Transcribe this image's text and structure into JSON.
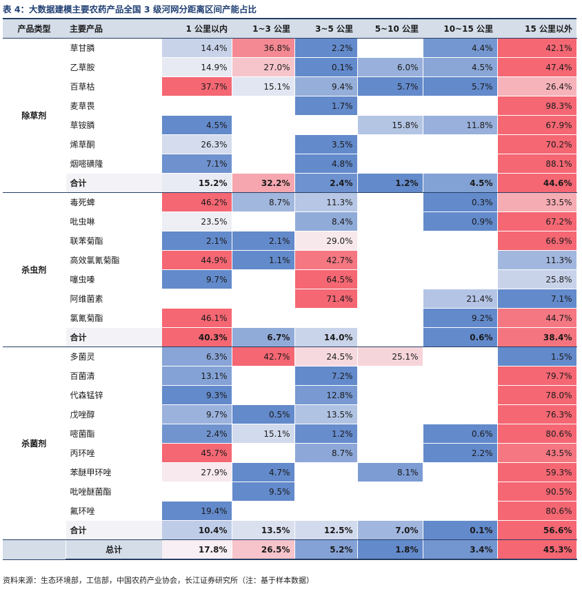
{
  "title": "表 4：大数据建模主要农药产品全国 3 级河网分距离区间产能占比",
  "columns": [
    "产品类型",
    "主要产品",
    "1 公里以内",
    "1~3 公里",
    "3~5 公里",
    "5~10 公里",
    "10~15 公里",
    "15 公里以外"
  ],
  "groups": [
    {
      "category": "除草剂",
      "rows": [
        {
          "name": "草甘膦",
          "values": [
            "14.4%",
            "36.8%",
            "2.2%",
            "",
            "4.4%",
            "42.1%"
          ]
        },
        {
          "name": "乙草胺",
          "values": [
            "14.9%",
            "27.0%",
            "0.1%",
            "6.0%",
            "4.5%",
            "47.4%"
          ]
        },
        {
          "name": "百草枯",
          "values": [
            "37.7%",
            "15.1%",
            "9.4%",
            "5.7%",
            "5.7%",
            "26.4%"
          ]
        },
        {
          "name": "麦草畏",
          "values": [
            "",
            "",
            "1.7%",
            "",
            "",
            "98.3%"
          ]
        },
        {
          "name": "草铵膦",
          "values": [
            "4.5%",
            "",
            "",
            "15.8%",
            "11.8%",
            "67.9%"
          ]
        },
        {
          "name": "烯草酮",
          "values": [
            "26.3%",
            "",
            "3.5%",
            "",
            "",
            "70.2%"
          ]
        },
        {
          "name": "烟嘧磺隆",
          "values": [
            "7.1%",
            "",
            "4.8%",
            "",
            "",
            "88.1%"
          ]
        }
      ],
      "subtotal": {
        "name": "合计",
        "values": [
          "15.2%",
          "32.2%",
          "2.4%",
          "1.2%",
          "4.5%",
          "44.6%"
        ]
      }
    },
    {
      "category": "杀虫剂",
      "rows": [
        {
          "name": "毒死蜱",
          "values": [
            "46.2%",
            "8.7%",
            "11.3%",
            "",
            "0.3%",
            "33.5%"
          ]
        },
        {
          "name": "吡虫啉",
          "values": [
            "23.5%",
            "",
            "8.4%",
            "",
            "0.9%",
            "67.2%"
          ]
        },
        {
          "name": "联苯菊酯",
          "values": [
            "2.1%",
            "2.1%",
            "29.0%",
            "",
            "",
            "66.9%"
          ]
        },
        {
          "name": "高效氯氰菊酯",
          "values": [
            "44.9%",
            "1.1%",
            "42.7%",
            "",
            "",
            "11.3%"
          ]
        },
        {
          "name": "噻虫嗪",
          "values": [
            "9.7%",
            "",
            "64.5%",
            "",
            "",
            "25.8%"
          ]
        },
        {
          "name": "阿维菌素",
          "values": [
            "",
            "",
            "71.4%",
            "",
            "21.4%",
            "7.1%"
          ]
        },
        {
          "name": "氯氰菊酯",
          "values": [
            "46.1%",
            "",
            "",
            "",
            "9.2%",
            "44.7%"
          ]
        }
      ],
      "subtotal": {
        "name": "合计",
        "values": [
          "40.3%",
          "6.7%",
          "14.0%",
          "",
          "0.6%",
          "38.4%"
        ]
      }
    },
    {
      "category": "杀菌剂",
      "rows": [
        {
          "name": "多菌灵",
          "values": [
            "6.3%",
            "42.7%",
            "24.5%",
            "25.1%",
            "",
            "1.5%"
          ]
        },
        {
          "name": "百菌清",
          "values": [
            "13.1%",
            "",
            "7.2%",
            "",
            "",
            "79.7%"
          ]
        },
        {
          "name": "代森锰锌",
          "values": [
            "9.3%",
            "",
            "12.8%",
            "",
            "",
            "78.0%"
          ]
        },
        {
          "name": "戊唑醇",
          "values": [
            "9.7%",
            "0.5%",
            "13.5%",
            "",
            "",
            "76.3%"
          ]
        },
        {
          "name": "嘧菌酯",
          "values": [
            "2.4%",
            "15.1%",
            "1.2%",
            "",
            "0.6%",
            "80.6%"
          ]
        },
        {
          "name": "丙环唑",
          "values": [
            "45.7%",
            "",
            "8.7%",
            "",
            "2.2%",
            "43.5%"
          ]
        },
        {
          "name": "苯醚甲环唑",
          "values": [
            "27.9%",
            "4.7%",
            "",
            "8.1%",
            "",
            "59.3%"
          ]
        },
        {
          "name": "吡唑醚菌酯",
          "values": [
            "",
            "9.5%",
            "",
            "",
            "",
            "90.5%"
          ]
        },
        {
          "name": "氟环唑",
          "values": [
            "19.4%",
            "",
            "",
            "",
            "",
            "80.6%"
          ]
        }
      ],
      "subtotal": {
        "name": "合计",
        "values": [
          "10.4%",
          "13.5%",
          "12.5%",
          "7.0%",
          "0.1%",
          "56.6%"
        ]
      }
    }
  ],
  "total": {
    "name": "总计",
    "values": [
      "17.8%",
      "26.5%",
      "5.2%",
      "1.8%",
      "3.4%",
      "45.3%"
    ]
  },
  "source": "资料来源：生态环境部，工信部，中国农药产业协会，长江证券研究所（注：基于样本数据）",
  "colors": {
    "header_bg": "#d4dde8",
    "rule": "#243c63",
    "title": "#1f3f73",
    "low": "#5b84c9",
    "mid": "#f7f5f8",
    "high": "#f4606c"
  }
}
